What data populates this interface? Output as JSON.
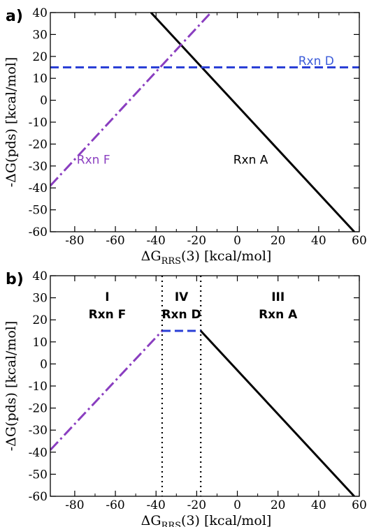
{
  "chart_data": [
    {
      "type": "line",
      "panel_label": "a)",
      "xlabel": "ΔG",
      "xlabel_sub": "RRS",
      "xlabel_rest": "(3) [kcal/mol]",
      "ylabel": "-ΔG(pds) [kcal/mol]",
      "xlim": [
        -92,
        60
      ],
      "ylim": [
        -60,
        40
      ],
      "xticks": [
        -80,
        -60,
        -40,
        -20,
        0,
        20,
        40,
        60
      ],
      "yticks": [
        40,
        30,
        20,
        10,
        0,
        -10,
        -20,
        -30,
        -40,
        -50,
        -60
      ],
      "series": [
        {
          "name": "Rxn A",
          "color": "#000000",
          "dash": "solid",
          "x": [
            -42.5,
            57.5
          ],
          "y": [
            40,
            -60
          ],
          "label_at": [
            -2,
            -27
          ]
        },
        {
          "name": "Rxn D",
          "color": "#2a3fd6",
          "dash": "dashed",
          "x": [
            -92,
            60
          ],
          "y": [
            15,
            15
          ],
          "label_at": [
            30,
            18
          ],
          "label_color": "#3b5bd9"
        },
        {
          "name": "Rxn F",
          "color": "#8a3ec0",
          "dash": "dashdot",
          "x": [
            -92,
            -13
          ],
          "y": [
            -39,
            40
          ],
          "label_at": [
            -79,
            -27
          ]
        }
      ]
    },
    {
      "type": "line",
      "panel_label": "b)",
      "xlabel": "ΔG",
      "xlabel_sub": "RRS",
      "xlabel_rest": "(3) [kcal/mol]",
      "ylabel": "-ΔG(pds) [kcal/mol]",
      "xlim": [
        -92,
        60
      ],
      "ylim": [
        -60,
        40
      ],
      "xticks": [
        -80,
        -60,
        -40,
        -20,
        0,
        20,
        40,
        60
      ],
      "yticks": [
        40,
        30,
        20,
        10,
        0,
        -10,
        -20,
        -30,
        -40,
        -50,
        -60
      ],
      "series": [
        {
          "color": "#8a3ec0",
          "dash": "dashdot",
          "x": [
            -92,
            -37
          ],
          "y": [
            -39,
            15
          ]
        },
        {
          "color": "#2a3fd6",
          "dash": "dashed",
          "x": [
            -37,
            -18
          ],
          "y": [
            15,
            15
          ]
        },
        {
          "color": "#000000",
          "dash": "solid",
          "x": [
            -18,
            57.5
          ],
          "y": [
            15,
            -60
          ]
        }
      ],
      "boundaries": [
        -37,
        -18
      ],
      "regions": [
        {
          "roman": "I",
          "rxn": "Rxn F",
          "x": -64
        },
        {
          "roman": "IV",
          "rxn": "Rxn D",
          "x": -27.5
        },
        {
          "roman": "III",
          "rxn": "Rxn A",
          "x": 20
        }
      ]
    }
  ]
}
